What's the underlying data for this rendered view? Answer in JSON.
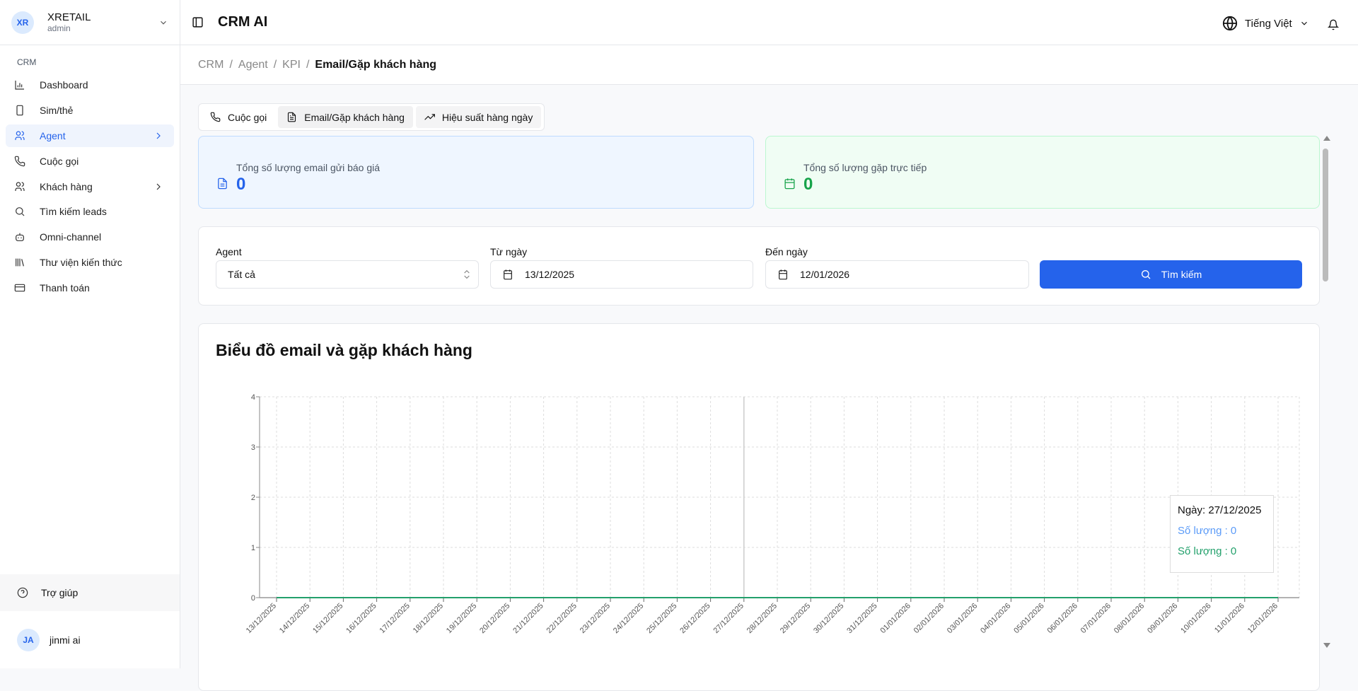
{
  "sidebar": {
    "org_initials": "XR",
    "org_name": "XRETAIL",
    "org_role": "admin",
    "section": "CRM",
    "items": [
      {
        "label": "Dashboard",
        "icon": "bar-chart-icon"
      },
      {
        "label": "Sim/thẻ",
        "icon": "phone-device-icon"
      },
      {
        "label": "Agent",
        "icon": "users-icon",
        "active": true,
        "has_children": true
      },
      {
        "label": "Cuộc gọi",
        "icon": "phone-icon"
      },
      {
        "label": "Khách hàng",
        "icon": "users-icon",
        "has_children": true
      },
      {
        "label": "Tìm kiếm leads",
        "icon": "search-icon"
      },
      {
        "label": "Omni-channel",
        "icon": "bot-icon"
      },
      {
        "label": "Thư viện kiến thức",
        "icon": "library-icon"
      },
      {
        "label": "Thanh toán",
        "icon": "credit-card-icon"
      }
    ],
    "help": "Trợ giúp",
    "user_initials": "JA",
    "user_name": "jinmi ai"
  },
  "header": {
    "title": "CRM AI",
    "language": "Tiếng Việt"
  },
  "breadcrumb": [
    "CRM",
    "Agent",
    "KPI",
    "Email/Gặp khách hàng"
  ],
  "tabs": [
    {
      "label": "Cuộc gọi"
    },
    {
      "label": "Email/Gặp khách hàng"
    },
    {
      "label": "Hiệu suất hàng ngày"
    }
  ],
  "stats": {
    "email": {
      "label": "Tổng số lượng email gửi báo giá",
      "value": "0",
      "color": "#2563eb"
    },
    "meet": {
      "label": "Tổng số lượng gặp trực tiếp",
      "value": "0",
      "color": "#16a34a"
    }
  },
  "filter": {
    "agent_label": "Agent",
    "agent_value": "Tất cả",
    "from_label": "Từ ngày",
    "from_value": "13/12/2025",
    "to_label": "Đến ngày",
    "to_value": "12/01/2026",
    "search_label": "Tìm kiếm"
  },
  "chart_data": {
    "type": "line",
    "title": "Biểu đồ email và gặp khách hàng",
    "ylim": [
      0,
      4
    ],
    "yticks": [
      0,
      1,
      2,
      3,
      4
    ],
    "grid": true,
    "x": [
      "13/12/2025",
      "14/12/2025",
      "15/12/2025",
      "16/12/2025",
      "17/12/2025",
      "18/12/2025",
      "19/12/2025",
      "20/12/2025",
      "21/12/2025",
      "22/12/2025",
      "23/12/2025",
      "24/12/2025",
      "25/12/2025",
      "26/12/2025",
      "27/12/2025",
      "28/12/2025",
      "29/12/2025",
      "30/12/2025",
      "31/12/2025",
      "01/01/2026",
      "02/01/2026",
      "03/01/2026",
      "04/01/2026",
      "05/01/2026",
      "06/01/2026",
      "07/01/2026",
      "08/01/2026",
      "09/01/2026",
      "10/01/2026",
      "11/01/2026",
      "12/01/2026"
    ],
    "series": [
      {
        "values": [
          0,
          0,
          0,
          0,
          0,
          0,
          0,
          0,
          0,
          0,
          0,
          0,
          0,
          0,
          0,
          0,
          0,
          0,
          0,
          0,
          0,
          0,
          0,
          0,
          0,
          0,
          0,
          0,
          0,
          0,
          0
        ],
        "color": "#5b9bf8"
      },
      {
        "values": [
          0,
          0,
          0,
          0,
          0,
          0,
          0,
          0,
          0,
          0,
          0,
          0,
          0,
          0,
          0,
          0,
          0,
          0,
          0,
          0,
          0,
          0,
          0,
          0,
          0,
          0,
          0,
          0,
          0,
          0,
          0
        ],
        "color": "#22a06b"
      }
    ],
    "tooltip": {
      "date_label": "Ngày",
      "date": "27/12/2025",
      "line1": "Số lượng : 0",
      "line2": "Số lượng : 0"
    }
  }
}
